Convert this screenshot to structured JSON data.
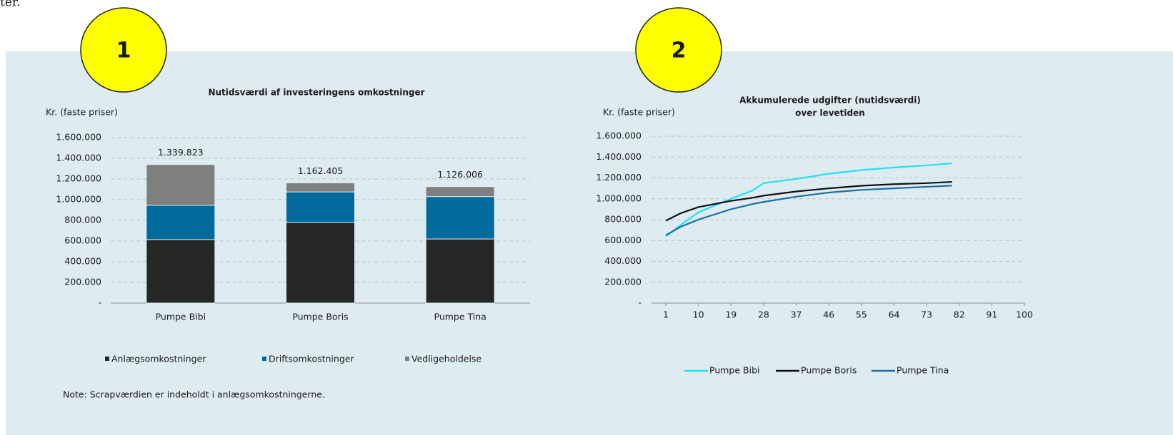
{
  "fragment": "ter.",
  "badges": [
    "1",
    "2"
  ],
  "chart_data": [
    {
      "type": "bar",
      "title": "Nutidsværdi af investeringens omkostninger",
      "ylabel": "Kr. (faste priser)",
      "categories": [
        "Pumpe Bibi",
        "Pumpe Boris",
        "Pumpe Tina"
      ],
      "stacked": true,
      "series": [
        {
          "name": "Anlægsomkostninger",
          "color": "#262626",
          "values": [
            615000,
            780000,
            620000
          ]
        },
        {
          "name": "Driftsomkostninger",
          "color": "#006b9c",
          "values": [
            330000,
            295000,
            410000
          ]
        },
        {
          "name": "Vedligeholdelse",
          "color": "#7f7f7f",
          "values": [
            394823,
            87405,
            96006
          ]
        }
      ],
      "totals": {
        "values": [
          1339823,
          1162405,
          1126006
        ],
        "value_labels": [
          "1.339.823",
          "1.162.405",
          "1.126.006"
        ]
      },
      "ylim": [
        0,
        1600000
      ],
      "yticks": [
        {
          "value": 0,
          "label": "-"
        },
        {
          "value": 200000,
          "label": "200.000"
        },
        {
          "value": 400000,
          "label": "400.000"
        },
        {
          "value": 600000,
          "label": "600.000"
        },
        {
          "value": 800000,
          "label": "800.000"
        },
        {
          "value": 1000000,
          "label": "1.000.000"
        },
        {
          "value": 1200000,
          "label": "1.200.000"
        },
        {
          "value": 1400000,
          "label": "1.400.000"
        },
        {
          "value": 1600000,
          "label": "1.600.000"
        }
      ],
      "grid": true,
      "legend": "bottom",
      "note": "Note: Scrapværdien er indeholdt i anlægsomkostningerne."
    },
    {
      "type": "line",
      "title": [
        "Akkumulerede udgifter (nutidsværdi)",
        "over levetiden"
      ],
      "ylabel": "Kr. (faste priser)",
      "x": [
        1,
        5,
        10,
        19,
        25,
        28,
        37,
        46,
        55,
        64,
        73,
        80
      ],
      "series": [
        {
          "name": "Pumpe Bibi",
          "color": "#1ee3f5",
          "values": [
            640000,
            745000,
            870000,
            1000000,
            1080000,
            1150000,
            1190000,
            1240000,
            1275000,
            1300000,
            1320000,
            1340000
          ]
        },
        {
          "name": "Pumpe Boris",
          "color": "#111111",
          "values": [
            790000,
            860000,
            920000,
            980000,
            1010000,
            1030000,
            1070000,
            1100000,
            1125000,
            1140000,
            1150000,
            1162000
          ]
        },
        {
          "name": "Pumpe Tina",
          "color": "#1a6fa0",
          "values": [
            650000,
            730000,
            800000,
            900000,
            950000,
            970000,
            1020000,
            1060000,
            1085000,
            1100000,
            1115000,
            1126000
          ]
        }
      ],
      "xlim": [
        1,
        100
      ],
      "xticks": [
        1,
        10,
        19,
        28,
        37,
        46,
        55,
        64,
        73,
        82,
        91,
        100
      ],
      "ylim": [
        0,
        1600000
      ],
      "yticks": [
        {
          "value": 0,
          "label": "-"
        },
        {
          "value": 200000,
          "label": "200.000"
        },
        {
          "value": 400000,
          "label": "400.000"
        },
        {
          "value": 600000,
          "label": "600.000"
        },
        {
          "value": 800000,
          "label": "800.000"
        },
        {
          "value": 1000000,
          "label": "1.000.000"
        },
        {
          "value": 1200000,
          "label": "1.200.000"
        },
        {
          "value": 1400000,
          "label": "1.400.000"
        },
        {
          "value": 1600000,
          "label": "1.600.000"
        }
      ],
      "grid": true,
      "legend": "bottom"
    }
  ]
}
